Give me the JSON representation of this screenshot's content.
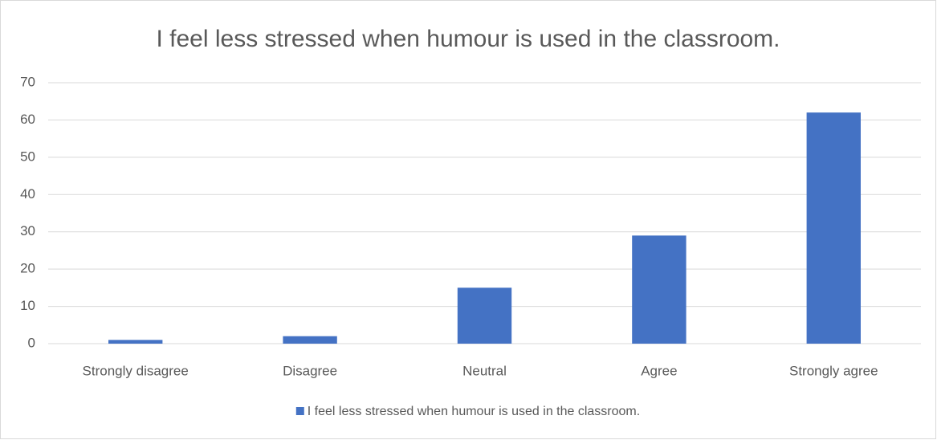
{
  "chart_data": {
    "type": "bar",
    "title": "I feel less stressed when humour is used in the classroom.",
    "categories": [
      "Strongly disagree",
      "Disagree",
      "Neutral",
      "Agree",
      "Strongly agree"
    ],
    "series": [
      {
        "name": "I feel less stressed when humour is used in the classroom.",
        "color": "#4472c4",
        "values": [
          1,
          2,
          15,
          29,
          62
        ]
      }
    ],
    "ylim": [
      0,
      70
    ],
    "yticks": [
      0,
      10,
      20,
      30,
      40,
      50,
      60,
      70
    ],
    "grid": true,
    "legend": "bottom"
  }
}
